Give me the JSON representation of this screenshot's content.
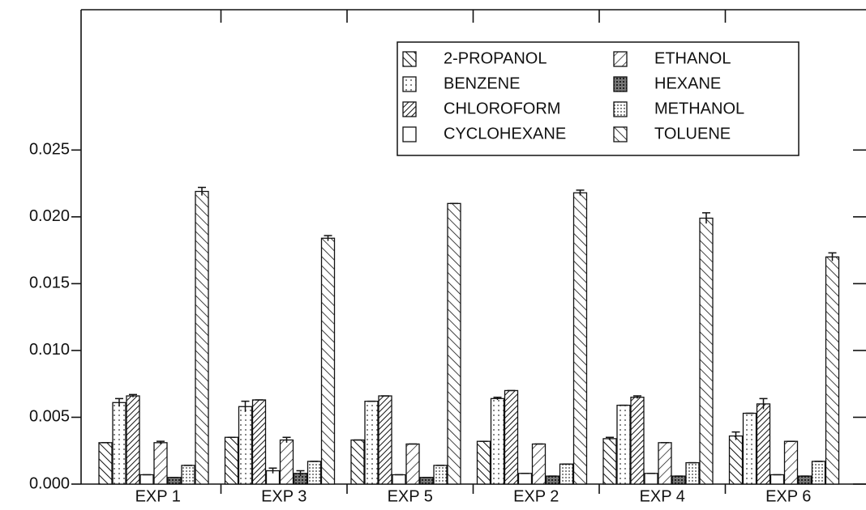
{
  "chart_data": {
    "type": "bar",
    "categories": [
      "EXP 1",
      "EXP 3",
      "EXP 5",
      "EXP 2",
      "EXP 4",
      "EXP 6"
    ],
    "series": [
      {
        "name": "2-PROPANOL",
        "color": "#111111",
        "pattern": "back-hatch",
        "values": [
          0.0031,
          0.0035,
          0.0033,
          0.0032,
          0.0034,
          0.0036
        ],
        "errors": [
          0,
          0,
          0,
          0,
          0.0001,
          0.0003
        ]
      },
      {
        "name": "BENZENE",
        "color": "#111111",
        "pattern": "sparse-dots",
        "values": [
          0.0061,
          0.0058,
          0.0062,
          0.0064,
          0.0059,
          0.0053
        ],
        "errors": [
          0.0003,
          0.0004,
          0,
          0.0001,
          0,
          0
        ]
      },
      {
        "name": "CHLOROFORM",
        "color": "#111111",
        "pattern": "dense-hatch",
        "values": [
          0.0066,
          0.0063,
          0.0066,
          0.007,
          0.0065,
          0.006
        ],
        "errors": [
          0.0001,
          0,
          0,
          0,
          0.0001,
          0.0004
        ]
      },
      {
        "name": "CYCLOHEXANE",
        "color": "#111111",
        "pattern": "none",
        "values": [
          0.0007,
          0.001,
          0.0007,
          0.0008,
          0.0008,
          0.0007
        ],
        "errors": [
          0,
          0.0002,
          0,
          0,
          0,
          0
        ]
      },
      {
        "name": "ETHANOL",
        "color": "#111111",
        "pattern": "sparse-hatch",
        "values": [
          0.0031,
          0.0033,
          0.003,
          0.003,
          0.0031,
          0.0032
        ],
        "errors": [
          0.0001,
          0.0002,
          0,
          0,
          0,
          0
        ]
      },
      {
        "name": "HEXANE",
        "color": "#111111",
        "pattern": "cross-hatch",
        "values": [
          0.0005,
          0.0008,
          0.0005,
          0.0006,
          0.0006,
          0.0006
        ],
        "errors": [
          0,
          0.0002,
          0,
          0,
          0,
          0
        ]
      },
      {
        "name": "METHANOL",
        "color": "#111111",
        "pattern": "dense-dots",
        "values": [
          0.0014,
          0.0017,
          0.0014,
          0.0015,
          0.0016,
          0.0017
        ],
        "errors": [
          0,
          0,
          0,
          0,
          0,
          0
        ]
      },
      {
        "name": "TOLUENE",
        "color": "#111111",
        "pattern": "back-hatch-wide",
        "values": [
          0.0219,
          0.0184,
          0.021,
          0.0218,
          0.0199,
          0.017
        ],
        "errors": [
          0.0003,
          0.0002,
          0,
          0.0002,
          0.0004,
          0.0003
        ]
      }
    ],
    "ylim": [
      0,
      0.0355
    ],
    "yticks": [
      {
        "value": 0,
        "label": "0.000"
      },
      {
        "value": 0.005,
        "label": "0.005"
      },
      {
        "value": 0.01,
        "label": "0.010"
      },
      {
        "value": 0.015,
        "label": "0.015"
      },
      {
        "value": 0.02,
        "label": "0.020"
      },
      {
        "value": 0.025,
        "label": "0.025"
      }
    ],
    "legend": "top-right"
  }
}
